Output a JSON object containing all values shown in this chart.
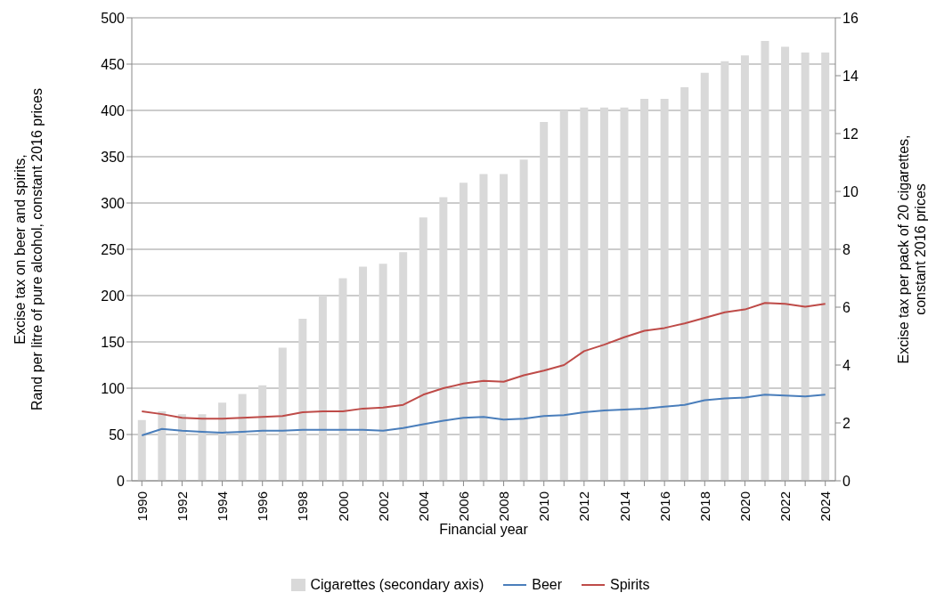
{
  "chart_data": {
    "type": "bar",
    "xlabel": "Financial year",
    "ylabel": "Excise tax on beer and spirits,\nRand per litre of pure alcohol, constant 2016 prices",
    "y2label": "Excise tax per pack of 20 cigarettes,\nconstant 2016 prices",
    "categories": [
      "1990",
      null,
      "1992",
      null,
      "1994",
      null,
      "1996",
      null,
      "1998",
      null,
      "2000",
      null,
      "2002",
      null,
      "2004",
      null,
      "2006",
      null,
      "2008",
      null,
      "2010",
      null,
      "2012",
      null,
      "2014",
      null,
      "2016",
      null,
      "2018",
      null,
      "2020",
      null,
      "2022",
      null,
      "2024"
    ],
    "series": [
      {
        "name": "Cigarettes (secondary axis)",
        "axis": "y2",
        "color": "#d9d9d9",
        "values": [
          2.1,
          2.4,
          2.3,
          2.3,
          2.7,
          3.0,
          3.3,
          4.6,
          5.6,
          6.4,
          7.0,
          7.4,
          7.5,
          7.9,
          9.1,
          9.8,
          10.3,
          10.6,
          10.6,
          11.1,
          12.4,
          12.8,
          12.9,
          12.9,
          12.9,
          13.2,
          13.2,
          13.6,
          14.1,
          14.5,
          14.7,
          15.2,
          15.0,
          14.8,
          14.8
        ]
      },
      {
        "name": "Beer",
        "type": "line",
        "axis": "y",
        "color": "#4a7ebb",
        "values": [
          49,
          56,
          54,
          53,
          52,
          53,
          54,
          54,
          55,
          55,
          55,
          55,
          54,
          57,
          61,
          65,
          68,
          69,
          66,
          67,
          70,
          71,
          74,
          76,
          77,
          78,
          80,
          82,
          87,
          89,
          90,
          93,
          92,
          91,
          93
        ]
      },
      {
        "name": "Spirits",
        "type": "line",
        "axis": "y",
        "color": "#be4b48",
        "values": [
          75,
          72,
          68,
          67,
          67,
          68,
          69,
          70,
          74,
          75,
          75,
          78,
          79,
          82,
          93,
          100,
          105,
          108,
          107,
          114,
          119,
          125,
          140,
          147,
          155,
          162,
          165,
          170,
          176,
          182,
          185,
          192,
          191,
          188,
          191
        ]
      }
    ],
    "ylim": [
      0,
      500
    ],
    "yticks": [
      0,
      50,
      100,
      150,
      200,
      250,
      300,
      350,
      400,
      450,
      500
    ],
    "y2lim": [
      0,
      16
    ],
    "y2ticks": [
      0,
      2,
      4,
      6,
      8,
      10,
      12,
      14,
      16
    ],
    "grid": "y",
    "legend": "bottom",
    "marker": "none",
    "line_style": "solid"
  }
}
